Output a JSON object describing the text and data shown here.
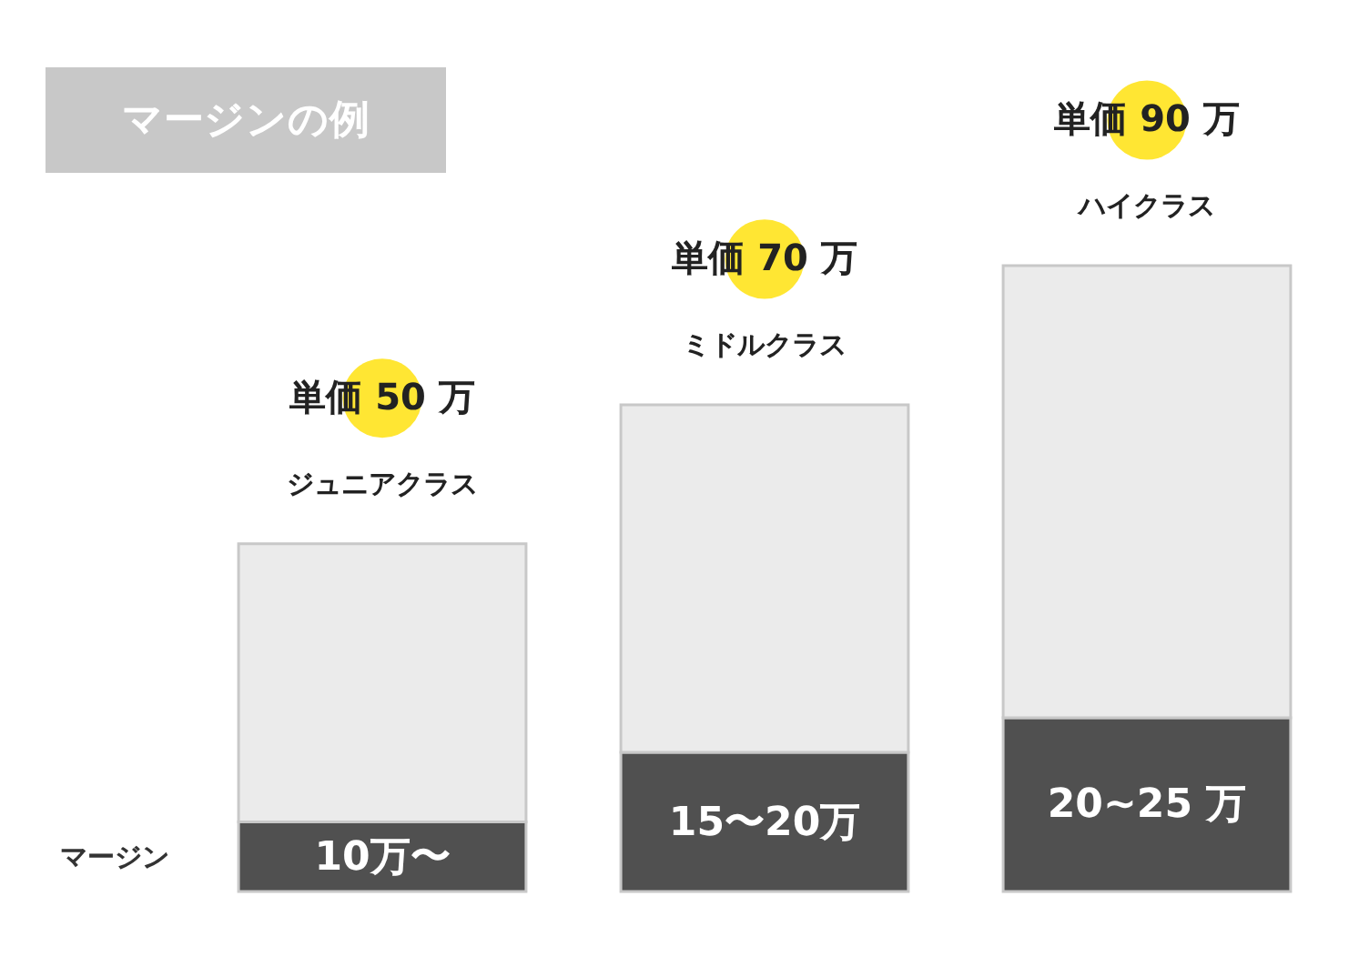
{
  "chart_data": {
    "type": "bar",
    "title": "マージンの例",
    "stacked": true,
    "tick_labels": false,
    "ylim": [
      0,
      90
    ],
    "categories": [
      "ジュニアクラス",
      "ミドルクラス",
      "ハイクラス"
    ],
    "series": [
      {
        "name": "マージン",
        "color": "#505050",
        "values": [
          10,
          20,
          25
        ],
        "value_labels": [
          "10万〜",
          "15〜20万",
          "20~25 万"
        ]
      },
      {
        "color": "#ebebeb",
        "values": [
          40,
          50,
          65
        ]
      }
    ],
    "annotations": [
      "単価 50 万",
      "単価 70 万",
      "単価 90 万"
    ]
  }
}
